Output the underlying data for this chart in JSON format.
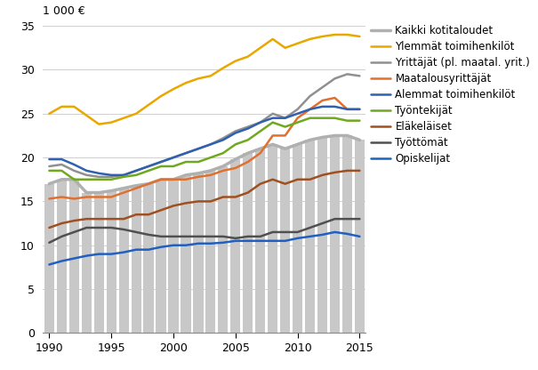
{
  "years": [
    1990,
    1991,
    1992,
    1993,
    1994,
    1995,
    1996,
    1997,
    1998,
    1999,
    2000,
    2001,
    2002,
    2003,
    2004,
    2005,
    2006,
    2007,
    2008,
    2009,
    2010,
    2011,
    2012,
    2013,
    2014,
    2015
  ],
  "bar_values": [
    17.0,
    17.5,
    17.5,
    16.0,
    16.0,
    16.2,
    16.5,
    16.8,
    17.0,
    17.5,
    17.5,
    18.0,
    18.2,
    18.5,
    19.0,
    19.8,
    20.5,
    21.0,
    21.5,
    21.0,
    21.5,
    22.0,
    22.3,
    22.5,
    22.5,
    22.0
  ],
  "bar_color": "#c8c8c8",
  "series": {
    "Kaikki kotitaloudet": {
      "color": "#b0b0b0",
      "linewidth": 2.5,
      "values": [
        17.0,
        17.5,
        17.5,
        16.0,
        16.0,
        16.2,
        16.5,
        16.8,
        17.0,
        17.5,
        17.5,
        18.0,
        18.2,
        18.5,
        19.0,
        19.8,
        20.5,
        21.0,
        21.5,
        21.0,
        21.5,
        22.0,
        22.3,
        22.5,
        22.5,
        22.0
      ]
    },
    "Ylemmät toimihenkilöt": {
      "color": "#e8a800",
      "linewidth": 1.8,
      "values": [
        25.0,
        25.8,
        25.8,
        24.8,
        23.8,
        24.0,
        24.5,
        25.0,
        26.0,
        27.0,
        27.8,
        28.5,
        29.0,
        29.3,
        30.2,
        31.0,
        31.5,
        32.5,
        33.5,
        32.5,
        33.0,
        33.5,
        33.8,
        34.0,
        34.0,
        33.8
      ]
    },
    "Yrittäjät (pl. maatal. yrit.)": {
      "color": "#909090",
      "linewidth": 1.8,
      "values": [
        19.0,
        19.2,
        18.5,
        18.0,
        17.8,
        17.8,
        18.0,
        18.5,
        19.0,
        19.5,
        20.0,
        20.5,
        21.0,
        21.5,
        22.2,
        23.0,
        23.5,
        24.0,
        25.0,
        24.5,
        25.5,
        27.0,
        28.0,
        29.0,
        29.5,
        29.3
      ]
    },
    "Maatalousyrittäjät": {
      "color": "#e07030",
      "linewidth": 1.8,
      "values": [
        15.3,
        15.5,
        15.3,
        15.5,
        15.5,
        15.5,
        16.0,
        16.5,
        17.0,
        17.5,
        17.5,
        17.5,
        17.8,
        18.0,
        18.5,
        18.8,
        19.5,
        20.5,
        22.5,
        22.5,
        24.5,
        25.5,
        26.5,
        26.8,
        25.5,
        25.5
      ]
    },
    "Alemmat toimihenkilöt": {
      "color": "#3060b0",
      "linewidth": 1.8,
      "values": [
        19.8,
        19.8,
        19.2,
        18.5,
        18.2,
        18.0,
        18.0,
        18.5,
        19.0,
        19.5,
        20.0,
        20.5,
        21.0,
        21.5,
        22.0,
        22.8,
        23.3,
        24.0,
        24.5,
        24.5,
        25.0,
        25.5,
        25.8,
        25.8,
        25.5,
        25.5
      ]
    },
    "Työntekijät": {
      "color": "#70a820",
      "linewidth": 1.8,
      "values": [
        18.5,
        18.5,
        17.5,
        17.5,
        17.5,
        17.5,
        17.8,
        18.0,
        18.5,
        19.0,
        19.0,
        19.5,
        19.5,
        20.0,
        20.5,
        21.5,
        22.0,
        23.0,
        24.0,
        23.5,
        24.0,
        24.5,
        24.5,
        24.5,
        24.2,
        24.2
      ]
    },
    "Eläkeläiset": {
      "color": "#a05020",
      "linewidth": 1.8,
      "values": [
        12.0,
        12.5,
        12.8,
        13.0,
        13.0,
        13.0,
        13.0,
        13.5,
        13.5,
        14.0,
        14.5,
        14.8,
        15.0,
        15.0,
        15.5,
        15.5,
        16.0,
        17.0,
        17.5,
        17.0,
        17.5,
        17.5,
        18.0,
        18.3,
        18.5,
        18.5
      ]
    },
    "Työttömät": {
      "color": "#505050",
      "linewidth": 1.8,
      "values": [
        10.3,
        11.0,
        11.5,
        12.0,
        12.0,
        12.0,
        11.8,
        11.5,
        11.2,
        11.0,
        11.0,
        11.0,
        11.0,
        11.0,
        11.0,
        10.8,
        11.0,
        11.0,
        11.5,
        11.5,
        11.5,
        12.0,
        12.5,
        13.0,
        13.0,
        13.0
      ]
    },
    "Opiskelijat": {
      "color": "#2060c0",
      "linewidth": 1.8,
      "values": [
        7.8,
        8.2,
        8.5,
        8.8,
        9.0,
        9.0,
        9.2,
        9.5,
        9.5,
        9.8,
        10.0,
        10.0,
        10.2,
        10.2,
        10.3,
        10.5,
        10.5,
        10.5,
        10.5,
        10.5,
        10.8,
        11.0,
        11.2,
        11.5,
        11.3,
        11.0
      ]
    }
  },
  "ylabel": "1 000 €",
  "ylim": [
    0,
    35
  ],
  "yticks": [
    0,
    5,
    10,
    15,
    20,
    25,
    30,
    35
  ],
  "xlim": [
    1989.5,
    2015.5
  ],
  "xticks": [
    1990,
    1995,
    2000,
    2005,
    2010,
    2015
  ],
  "background_color": "#ffffff",
  "legend_fontsize": 8.5,
  "axis_fontsize": 9,
  "figsize": [
    6.05,
    4.16
  ],
  "dpi": 100
}
